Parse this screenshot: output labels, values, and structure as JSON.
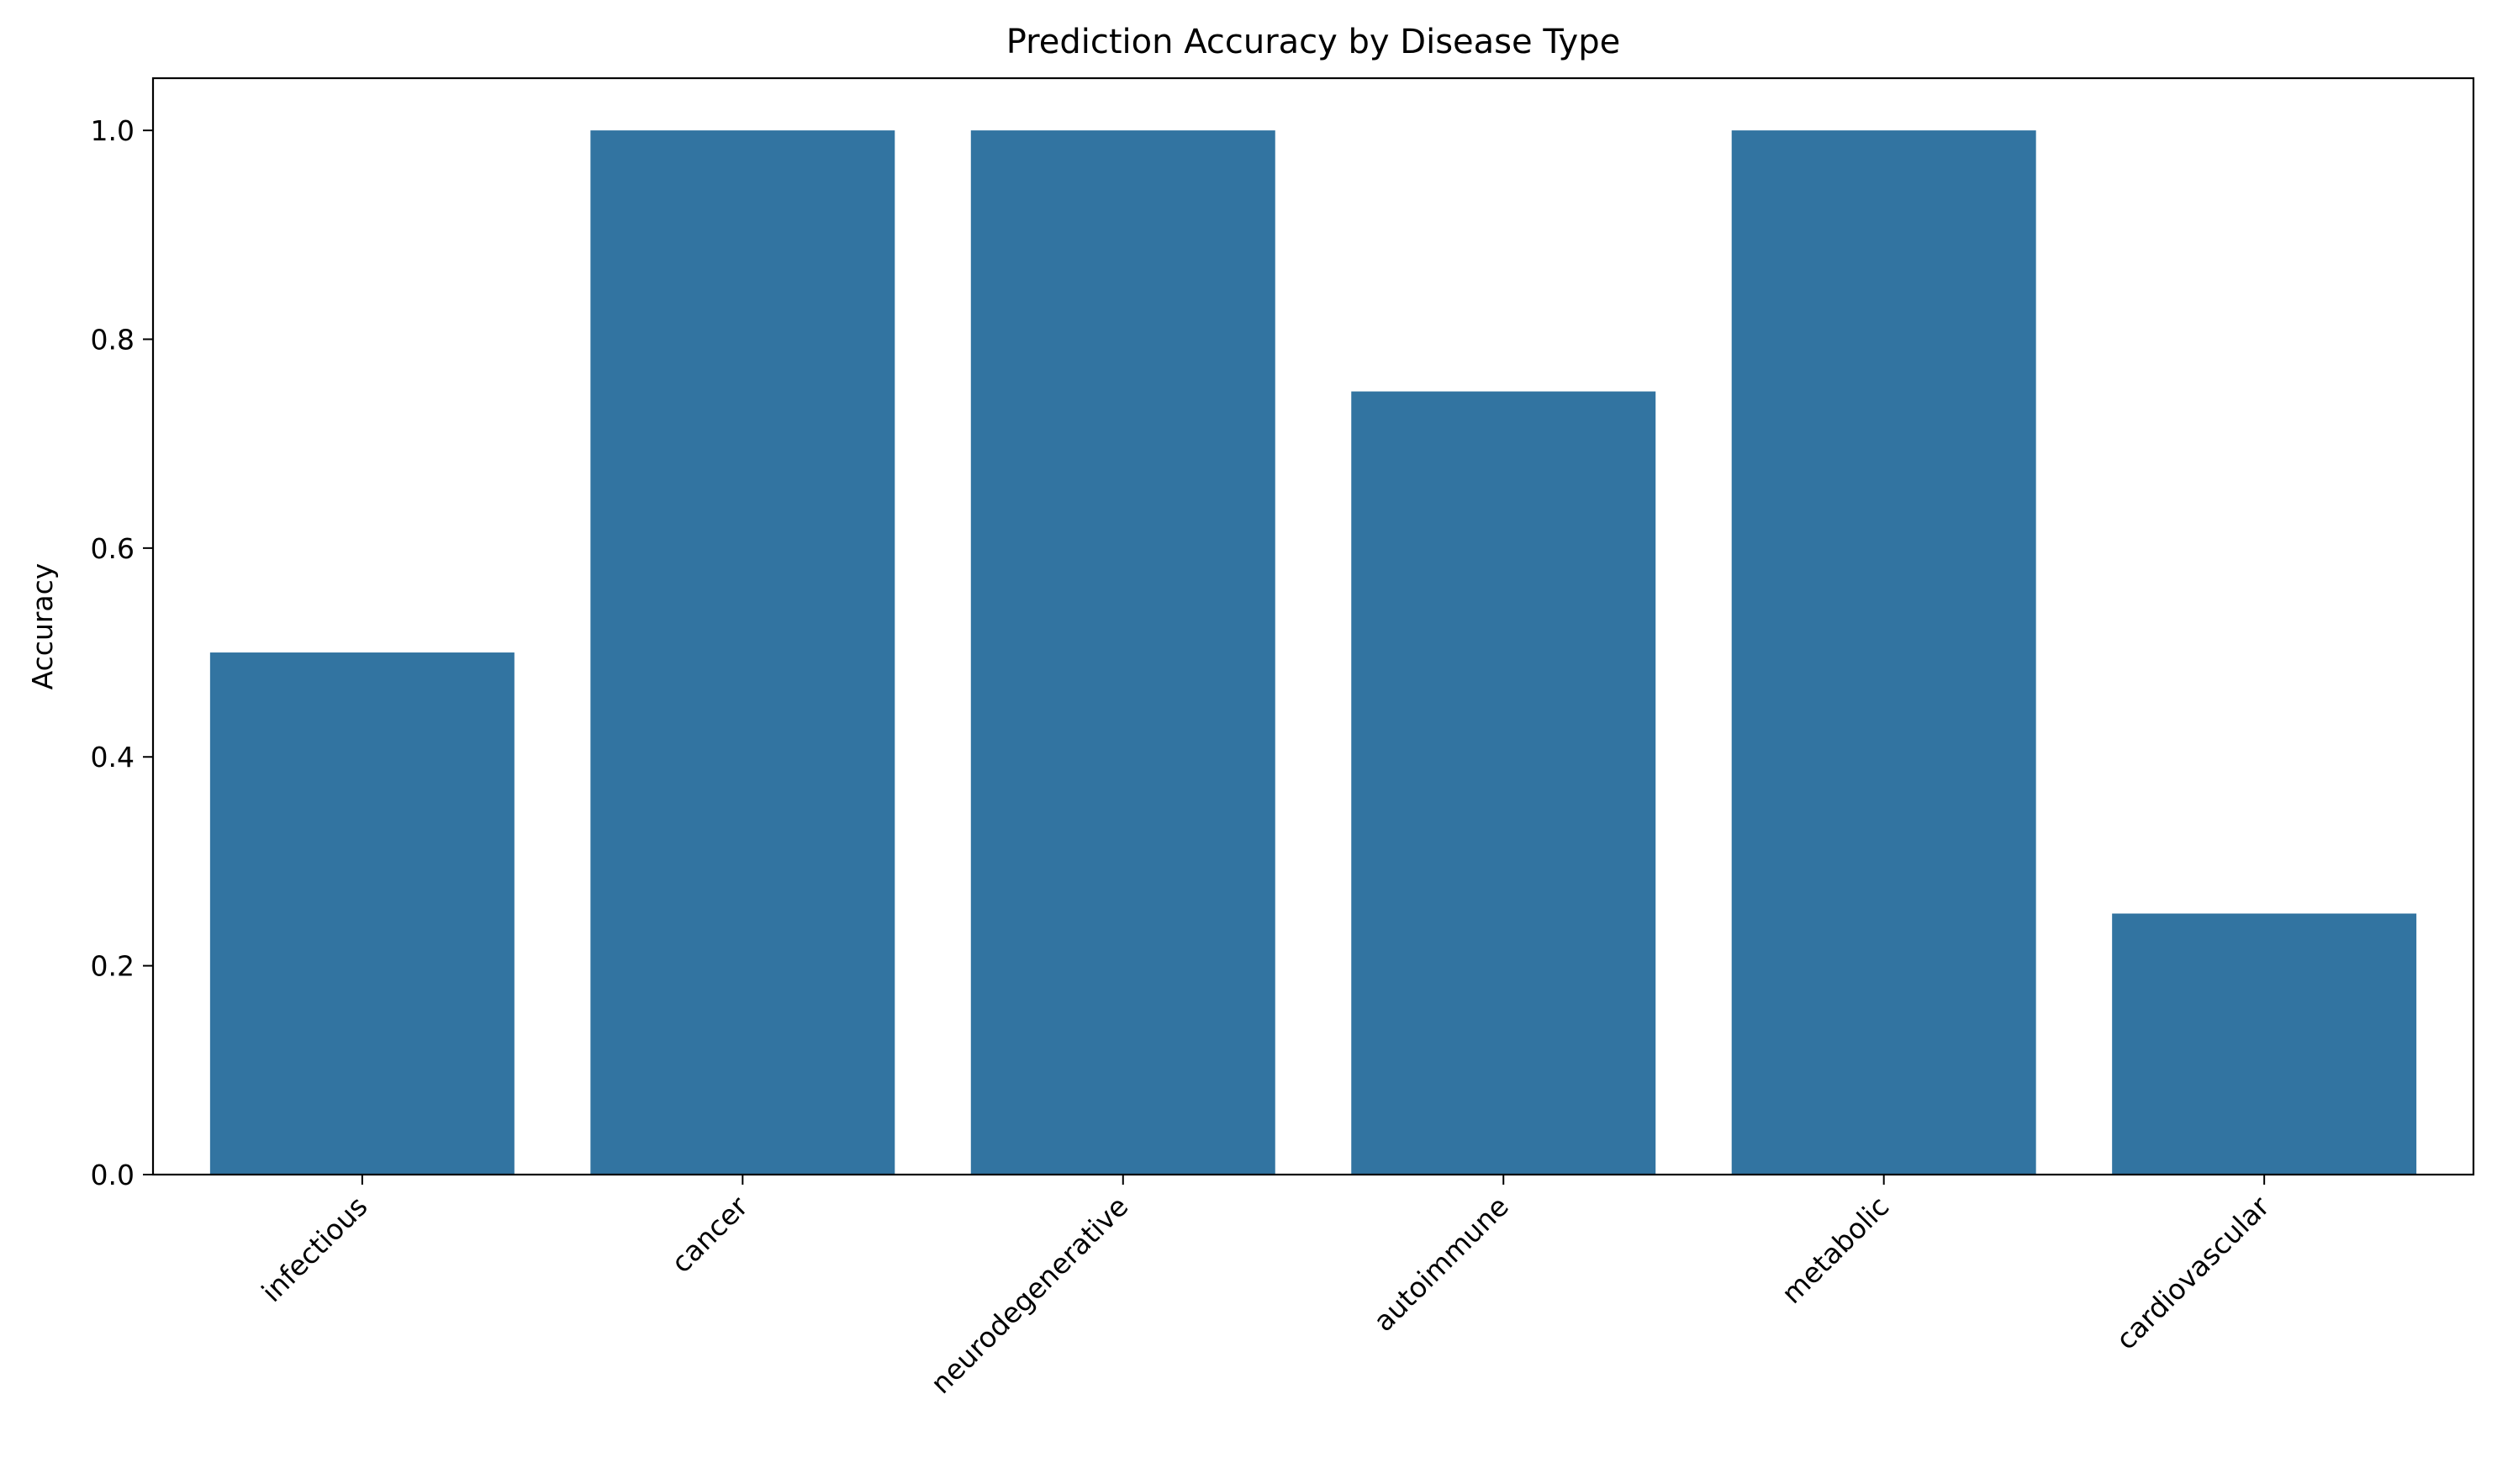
{
  "chart_data": {
    "type": "bar",
    "title": "Prediction Accuracy by Disease Type",
    "xlabel": "",
    "ylabel": "Accuracy",
    "categories": [
      "infectious",
      "cancer",
      "neurodegenerative",
      "autoimmune",
      "metabolic",
      "cardiovascular"
    ],
    "values": [
      0.5,
      1.0,
      1.0,
      0.75,
      1.0,
      0.25
    ],
    "ylim": [
      0,
      1.05
    ],
    "yticks": [
      "0.0",
      "0.2",
      "0.4",
      "0.6",
      "0.8",
      "1.0"
    ],
    "grid": false,
    "legend": "none",
    "bar_color": "#3274a1"
  }
}
